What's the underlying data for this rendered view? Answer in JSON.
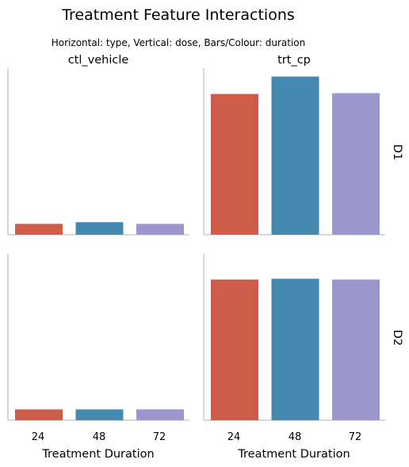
{
  "chart_data": {
    "type": "bar",
    "title": "Treatment Feature Interactions",
    "subtitle": "Horizontal: type, Vertical: dose, Bars/Colour: duration",
    "col_facets": [
      "ctl_vehicle",
      "trt_cp"
    ],
    "row_facets": [
      "D1",
      "D2"
    ],
    "xlabel": "Treatment Duration",
    "categories": [
      "24",
      "48",
      "72"
    ],
    "colors": [
      "#cf5b49",
      "#4389b0",
      "#9b96cc"
    ],
    "ylim": [
      0,
      100
    ],
    "y_ticks_visible": false,
    "grid": false,
    "panels": [
      {
        "col": "ctl_vehicle",
        "row": "D1",
        "values": [
          6.5,
          7.5,
          6.5
        ]
      },
      {
        "col": "trt_cp",
        "row": "D1",
        "values": [
          84.5,
          95,
          85
        ]
      },
      {
        "col": "ctl_vehicle",
        "row": "D2",
        "values": [
          6.5,
          6.5,
          6.5
        ]
      },
      {
        "col": "trt_cp",
        "row": "D2",
        "values": [
          84.5,
          85,
          84.5
        ]
      }
    ]
  }
}
